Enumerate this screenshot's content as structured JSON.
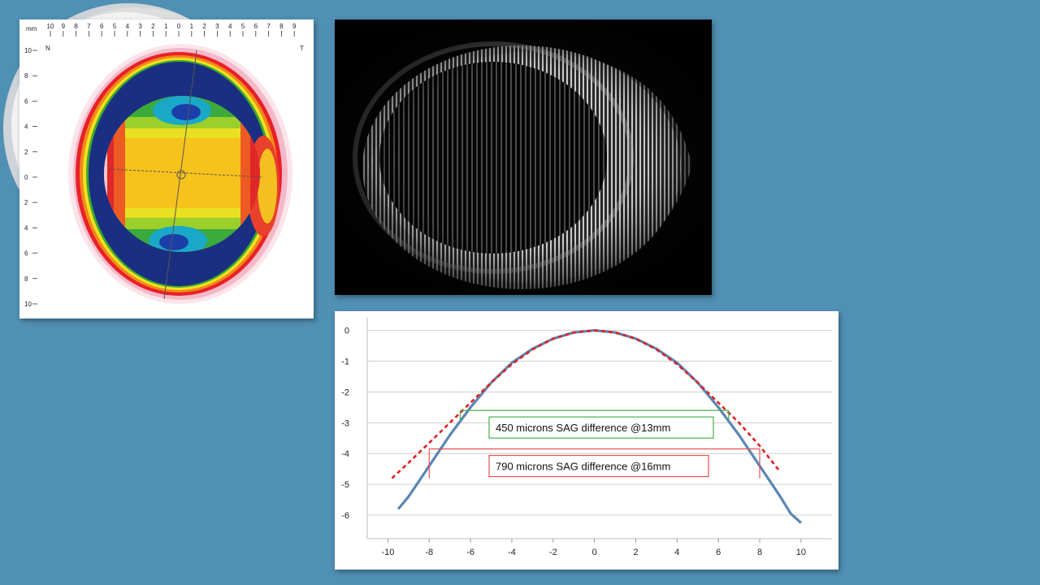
{
  "topography": {
    "unit_label": "mm",
    "top_ticks": [
      "10",
      "9",
      "8",
      "7",
      "6",
      "5",
      "4",
      "3",
      "2",
      "1",
      "0",
      "1",
      "2",
      "3",
      "4",
      "5",
      "6",
      "7",
      "8",
      "9"
    ],
    "left_ticks": [
      "10",
      "8",
      "6",
      "4",
      "2",
      "0",
      "2",
      "4",
      "6",
      "8",
      "10"
    ],
    "nasal_label": "N",
    "temporal_label": "T"
  },
  "colors": {
    "background": "#5090b4",
    "profile_curve": "#5b86b3",
    "reference_curve": "#e32020",
    "green_annotation": "#48b048",
    "red_annotation": "#e85050"
  },
  "chart_data": {
    "type": "line",
    "title": "",
    "xlabel": "",
    "ylabel": "",
    "xlim": [
      -11,
      11.5
    ],
    "ylim": [
      -6.5,
      0.2
    ],
    "x_ticks": [
      -10,
      -8,
      -6,
      -4,
      -2,
      0,
      2,
      4,
      6,
      8,
      10
    ],
    "y_ticks": [
      0,
      -1,
      -2,
      -3,
      -4,
      -5,
      -6
    ],
    "grid": true,
    "legend": "none",
    "series": [
      {
        "style": "solid-blue",
        "x": [
          -9.5,
          -9.0,
          -8.5,
          -8.0,
          -7.0,
          -6.0,
          -5.0,
          -4.0,
          -3.0,
          -2.0,
          -1.0,
          0.0,
          1.0,
          2.0,
          3.0,
          4.0,
          5.0,
          6.0,
          7.0,
          8.0,
          8.5,
          9.0,
          9.5,
          10.0
        ],
        "y": [
          -5.8,
          -5.4,
          -4.9,
          -4.4,
          -3.4,
          -2.5,
          -1.7,
          -1.05,
          -0.6,
          -0.27,
          -0.07,
          0.0,
          -0.07,
          -0.27,
          -0.6,
          -1.05,
          -1.7,
          -2.5,
          -3.4,
          -4.4,
          -4.9,
          -5.4,
          -5.95,
          -6.25
        ]
      },
      {
        "style": "dashed-red",
        "x": [
          -9.8,
          -9.0,
          -8.0,
          -7.0,
          -6.0,
          -5.0,
          -4.0,
          -3.0,
          -2.0,
          -1.0,
          0.0,
          1.0,
          2.0,
          3.0,
          4.0,
          5.0,
          6.0,
          7.0,
          8.0,
          9.0
        ],
        "y": [
          -4.8,
          -4.3,
          -3.65,
          -3.0,
          -2.35,
          -1.7,
          -1.1,
          -0.62,
          -0.27,
          -0.07,
          0.0,
          -0.07,
          -0.27,
          -0.62,
          -1.1,
          -1.7,
          -2.35,
          -3.0,
          -3.75,
          -4.6
        ]
      }
    ],
    "annotations": [
      {
        "text": "450 microns SAG difference @13mm",
        "y": -2.6,
        "x_from": -6.5,
        "x_to": 6.5,
        "box_color": "#48b048"
      },
      {
        "text": "790 microns SAG difference @16mm",
        "y": -3.85,
        "x_from": -8.0,
        "x_to": 8.0,
        "box_color": "#e85050"
      }
    ]
  }
}
